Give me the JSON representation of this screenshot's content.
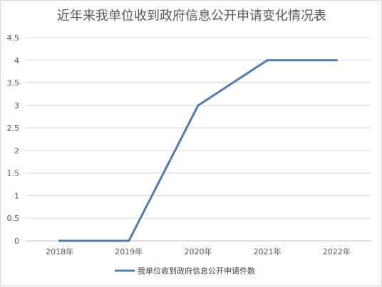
{
  "chart_data": {
    "type": "line",
    "title": "近年来我单位收到政府信息公开申请变化情况表",
    "categories": [
      "2018年",
      "2019年",
      "2020年",
      "2021年",
      "2022年"
    ],
    "series": [
      {
        "name": "我单位收到政府信息公开申请件数",
        "values": [
          0,
          0,
          3,
          4,
          4
        ],
        "color": "#4f7bb2"
      }
    ],
    "y_ticks": [
      "0",
      "0.5",
      "1",
      "1.5",
      "2",
      "2.5",
      "3",
      "3.5",
      "4",
      "4.5"
    ],
    "ylim": [
      0,
      4.5
    ],
    "grid": true,
    "legend_position": "bottom"
  }
}
